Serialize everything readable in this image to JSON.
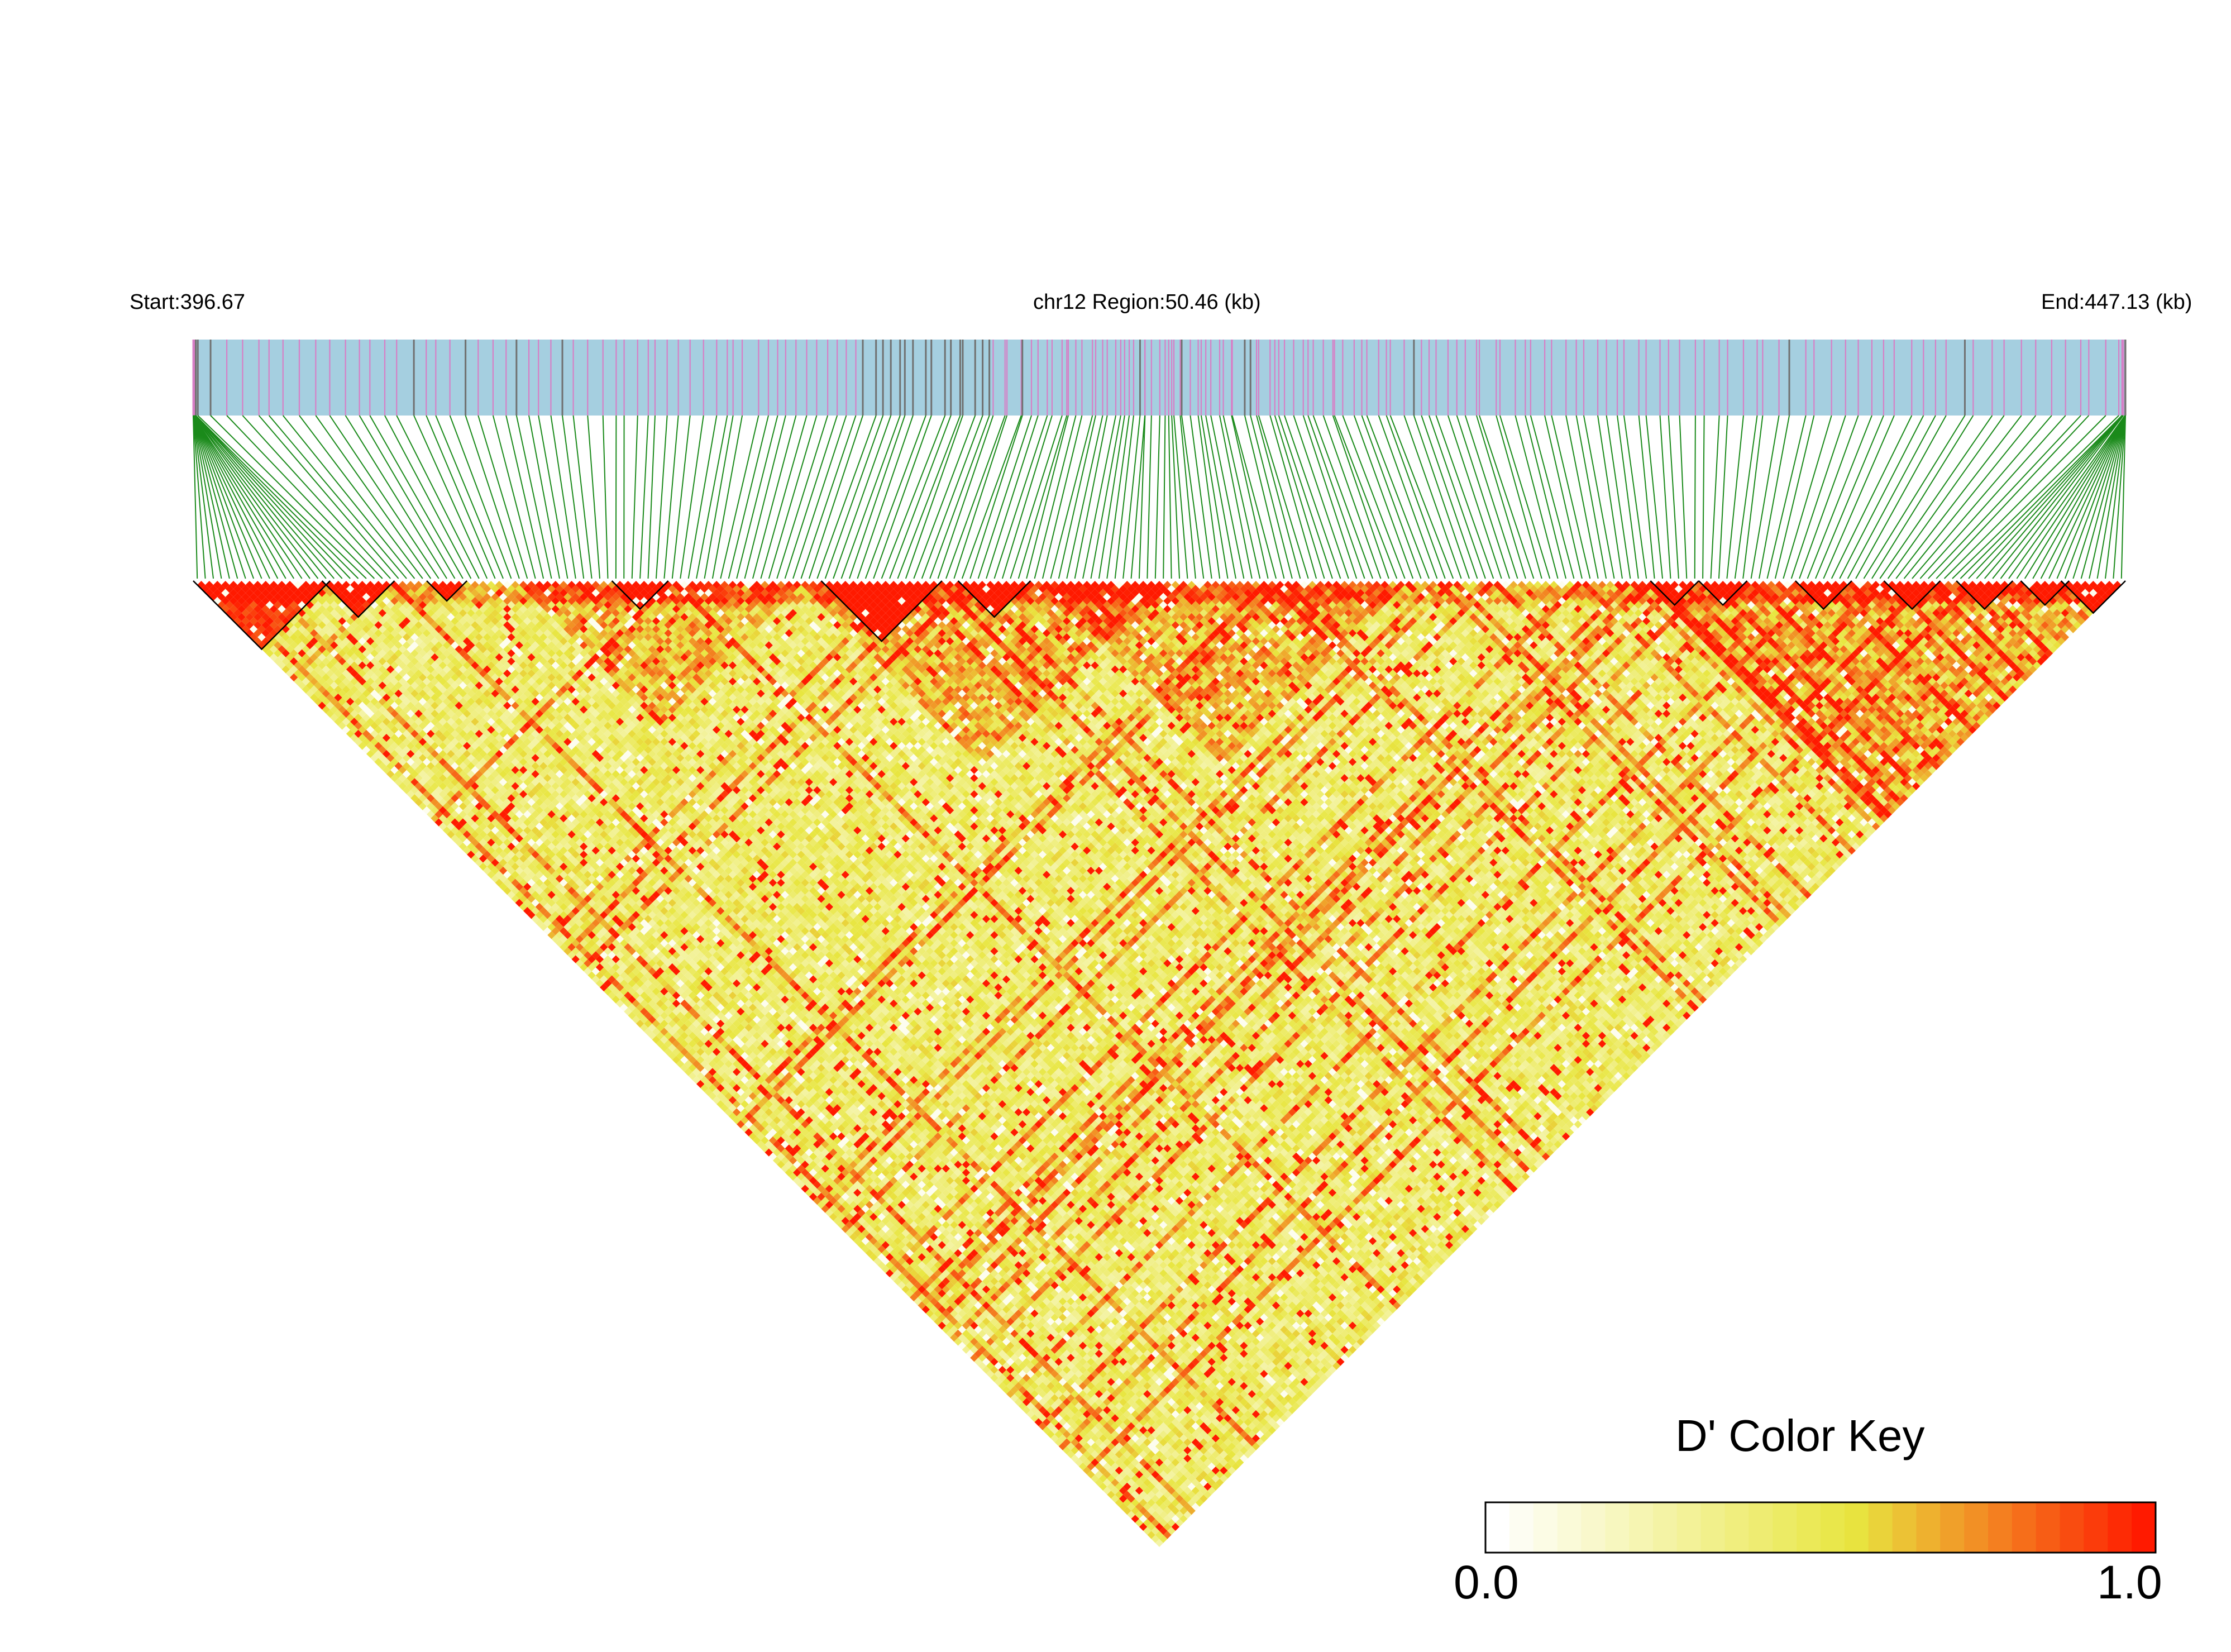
{
  "header": {
    "start_label": "Start:396.67",
    "region_label": "chr12 Region:50.46 (kb)",
    "end_label": "End:447.13 (kb)"
  },
  "legend": {
    "title": "D' Color Key",
    "min_label": "0.0",
    "max_label": "1.0"
  },
  "colors": {
    "gene_track": "#a5cfe0",
    "snp_mark_pink": "#d77fc6",
    "snp_mark_gray": "#707070",
    "connector": "#1a8a1a",
    "low": "#ffffff",
    "mid": "#e8e640",
    "high": "#ff1a00"
  },
  "chart_data": {
    "type": "heatmap",
    "chromosome": "chr12",
    "region_start_kb": 396.67,
    "region_end_kb": 447.13,
    "region_length_kb": 50.46,
    "n_snps": 240,
    "statistic": "D'",
    "value_range": [
      0,
      1
    ],
    "color_scale": [
      "#ffffff",
      "#e8e640",
      "#ff1a00"
    ],
    "high_ld_blocks_snp_ranges": [
      [
        0,
        16
      ],
      [
        16,
        24
      ],
      [
        29,
        33
      ],
      [
        52,
        58
      ],
      [
        78,
        92
      ],
      [
        95,
        103
      ],
      [
        181,
        186
      ],
      [
        187,
        192
      ],
      [
        199,
        205
      ],
      [
        210,
        216
      ],
      [
        219,
        225
      ],
      [
        227,
        232
      ],
      [
        232,
        239
      ]
    ],
    "high_ld_diagonal_bands_snp_ranges": [
      [
        40,
        75
      ],
      [
        75,
        120
      ],
      [
        105,
        150
      ],
      [
        180,
        240
      ]
    ]
  }
}
